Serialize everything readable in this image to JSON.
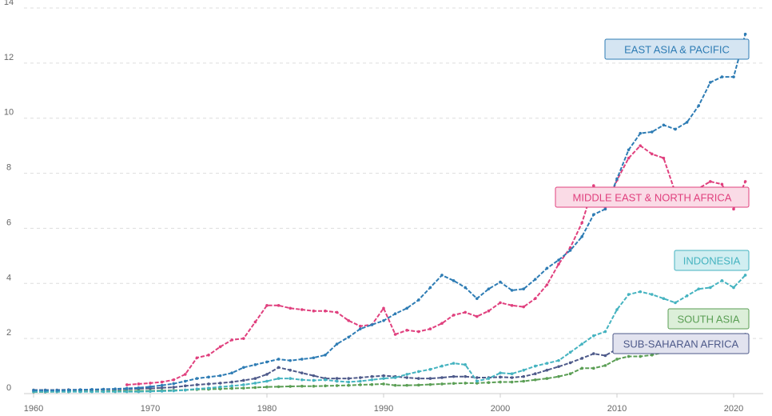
{
  "chart_data": {
    "type": "line",
    "title": "",
    "xlabel": "",
    "ylabel": "",
    "xlim": [
      1960,
      2021
    ],
    "ylim": [
      0,
      14
    ],
    "x_ticks": [
      "1960",
      "1970",
      "1980",
      "1990",
      "2000",
      "2010",
      "2020"
    ],
    "y_ticks": [
      "0",
      "2",
      "4",
      "6",
      "8",
      "10",
      "12",
      "14"
    ],
    "grid": "horizontal-dashed",
    "legend": "direct labels at right end of lines",
    "x": [
      1960,
      1961,
      1962,
      1963,
      1964,
      1965,
      1966,
      1967,
      1968,
      1969,
      1970,
      1971,
      1972,
      1973,
      1974,
      1975,
      1976,
      1977,
      1978,
      1979,
      1980,
      1981,
      1982,
      1983,
      1984,
      1985,
      1986,
      1987,
      1988,
      1989,
      1990,
      1991,
      1992,
      1993,
      1994,
      1995,
      1996,
      1997,
      1998,
      1999,
      2000,
      2001,
      2002,
      2003,
      2004,
      2005,
      2006,
      2007,
      2008,
      2009,
      2010,
      2011,
      2012,
      2013,
      2014,
      2015,
      2016,
      2017,
      2018,
      2019,
      2020,
      2021
    ],
    "series": [
      {
        "name": "EAST ASIA & PACIFIC",
        "color": "#2e7cb4",
        "label_bg": "#d5e5f2",
        "values": [
          0.12,
          0.12,
          0.12,
          0.13,
          0.14,
          0.15,
          0.16,
          0.17,
          0.19,
          0.21,
          0.25,
          0.3,
          0.36,
          0.45,
          0.55,
          0.6,
          0.65,
          0.75,
          0.95,
          1.05,
          1.15,
          1.25,
          1.2,
          1.25,
          1.3,
          1.4,
          1.8,
          2.05,
          2.35,
          2.5,
          2.65,
          2.9,
          3.1,
          3.4,
          3.85,
          4.3,
          4.1,
          3.85,
          3.45,
          3.8,
          4.05,
          3.75,
          3.8,
          4.15,
          4.55,
          4.85,
          5.2,
          5.7,
          6.5,
          6.7,
          7.8,
          8.85,
          9.45,
          9.5,
          9.75,
          9.6,
          9.85,
          10.45,
          11.3,
          11.5,
          11.5,
          13.05
        ]
      },
      {
        "name": "MIDDLE EAST & NORTH AFRICA",
        "color": "#e0407e",
        "label_bg": "#fadbe6",
        "values": [
          null,
          null,
          null,
          null,
          null,
          null,
          null,
          null,
          0.32,
          0.35,
          0.38,
          0.42,
          0.5,
          0.7,
          1.3,
          1.4,
          1.7,
          1.95,
          2.0,
          2.6,
          3.2,
          3.2,
          3.1,
          3.05,
          3.0,
          3.0,
          2.95,
          2.65,
          2.45,
          2.5,
          3.1,
          2.15,
          2.3,
          2.25,
          2.35,
          2.55,
          2.85,
          2.95,
          2.8,
          3.0,
          3.3,
          3.2,
          3.15,
          3.45,
          3.95,
          4.7,
          5.3,
          6.2,
          7.55,
          6.7,
          7.75,
          8.55,
          9.0,
          8.7,
          8.55,
          7.3,
          7.35,
          7.45,
          7.7,
          7.6,
          6.7,
          7.7
        ]
      },
      {
        "name": "INDONESIA",
        "color": "#45b3c0",
        "label_bg": "#d1eef1",
        "values": [
          0.07,
          0.07,
          0.07,
          0.07,
          0.07,
          0.07,
          0.07,
          0.07,
          0.07,
          0.07,
          0.08,
          0.09,
          0.1,
          0.13,
          0.17,
          0.2,
          0.24,
          0.28,
          0.32,
          0.38,
          0.45,
          0.55,
          0.55,
          0.5,
          0.48,
          0.5,
          0.45,
          0.42,
          0.45,
          0.5,
          0.55,
          0.58,
          0.7,
          0.8,
          0.88,
          1.0,
          1.1,
          1.05,
          0.45,
          0.55,
          0.75,
          0.72,
          0.85,
          1.0,
          1.1,
          1.2,
          1.5,
          1.8,
          2.1,
          2.25,
          3.05,
          3.6,
          3.7,
          3.6,
          3.45,
          3.3,
          3.55,
          3.8,
          3.85,
          4.1,
          3.85,
          4.3
        ]
      },
      {
        "name": "SOUTH ASIA",
        "color": "#5a9e54",
        "label_bg": "#dcefd9",
        "values": [
          0.06,
          0.06,
          0.07,
          0.07,
          0.08,
          0.08,
          0.08,
          0.09,
          0.09,
          0.1,
          0.1,
          0.11,
          0.12,
          0.13,
          0.15,
          0.16,
          0.17,
          0.19,
          0.2,
          0.22,
          0.24,
          0.25,
          0.26,
          0.27,
          0.27,
          0.28,
          0.29,
          0.3,
          0.32,
          0.33,
          0.35,
          0.3,
          0.3,
          0.31,
          0.33,
          0.35,
          0.37,
          0.38,
          0.38,
          0.4,
          0.42,
          0.42,
          0.45,
          0.5,
          0.55,
          0.62,
          0.72,
          0.92,
          0.92,
          1.02,
          1.25,
          1.35,
          1.35,
          1.4,
          1.5,
          1.55,
          1.6,
          1.7,
          1.8,
          1.9,
          1.95,
          2.1
        ]
      },
      {
        "name": "SUB-SAHARAN AFRICA",
        "color": "#4e5a8a",
        "label_bg": "#e2e3ef",
        "values": [
          0.13,
          0.13,
          0.13,
          0.14,
          0.14,
          0.14,
          0.15,
          0.15,
          0.16,
          0.18,
          0.19,
          0.21,
          0.23,
          0.28,
          0.32,
          0.35,
          0.38,
          0.42,
          0.48,
          0.55,
          0.7,
          0.95,
          0.85,
          0.75,
          0.65,
          0.55,
          0.55,
          0.55,
          0.58,
          0.62,
          0.65,
          0.62,
          0.58,
          0.55,
          0.55,
          0.58,
          0.62,
          0.62,
          0.58,
          0.58,
          0.6,
          0.58,
          0.62,
          0.72,
          0.85,
          0.98,
          1.12,
          1.28,
          1.45,
          1.38,
          1.62,
          1.7,
          1.72,
          1.75,
          1.82,
          1.88,
          1.9,
          1.95,
          2.0,
          2.05,
          2.08,
          2.15
        ]
      }
    ]
  }
}
